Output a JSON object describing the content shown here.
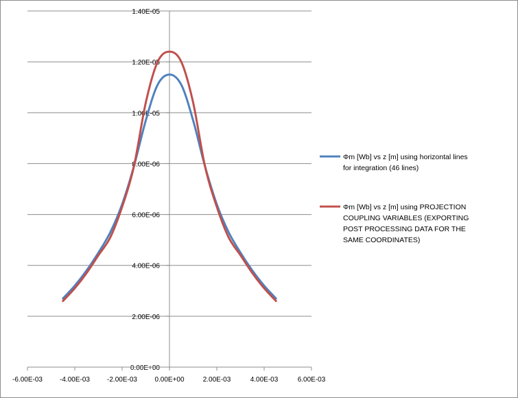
{
  "chart_data": {
    "type": "line",
    "title": "",
    "xlabel": "",
    "ylabel": "",
    "xlim": [
      -0.006,
      0.006
    ],
    "ylim": [
      0,
      1.4e-05
    ],
    "grid": "horizontal major gridlines",
    "legend_position": "right",
    "x_tick_labels": [
      "-6.00E-03",
      "-4.00E-03",
      "-2.00E-03",
      "0.00E+00",
      "2.00E-03",
      "4.00E-03",
      "6.00E-03"
    ],
    "y_tick_labels": [
      "0.00E+00",
      "2.00E-06",
      "4.00E-06",
      "6.00E-06",
      "8.00E-06",
      "1.00E-05",
      "1.20E-05",
      "1.40E-05"
    ],
    "series": [
      {
        "name": "Φm [Wb] vs z [m] using horizontal lines for integration (46 lines)",
        "legend_lines": [
          "Φm [Wb] vs z [m] using horizontal lines",
          "for integration (46 lines)"
        ],
        "color": "#4f81bd",
        "x": [
          -0.0045,
          -0.004,
          -0.0035,
          -0.003,
          -0.0025,
          -0.002,
          -0.0015,
          -0.001,
          -0.0005,
          0,
          0.0005,
          0.001,
          0.0015,
          0.002,
          0.0025,
          0.003,
          0.0035,
          0.004,
          0.0045
        ],
        "y": [
          2.7e-06,
          3.2e-06,
          3.8e-06,
          4.5e-06,
          5.3e-06,
          6.4e-06,
          7.9e-06,
          9.7e-06,
          1.11e-05,
          1.15e-05,
          1.11e-05,
          9.7e-06,
          7.9e-06,
          6.4e-06,
          5.3e-06,
          4.5e-06,
          3.8e-06,
          3.2e-06,
          2.7e-06
        ]
      },
      {
        "name": "Φm [Wb] vs z [m] using PROJECTION COUPLING VARIABLES (EXPORTING POST PROCESSING DATA FOR THE SAME COORDINATES)",
        "legend_lines": [
          "Φm [Wb] vs z [m] using PROJECTION",
          "COUPLING VARIABLES (EXPORTING",
          "POST PROCESSING  DATA FOR THE",
          "SAME COORDINATES)"
        ],
        "color": "#c0504d",
        "x": [
          -0.0045,
          -0.004,
          -0.0035,
          -0.003,
          -0.0025,
          -0.002,
          -0.0015,
          -0.001,
          -0.0005,
          0,
          0.0005,
          0.001,
          0.0015,
          0.002,
          0.0025,
          0.003,
          0.0035,
          0.004,
          0.0045
        ],
        "y": [
          2.6e-06,
          3.1e-06,
          3.7e-06,
          4.4e-06,
          5.1e-06,
          6.3e-06,
          7.9e-06,
          1.04e-05,
          1.2e-05,
          1.24e-05,
          1.2e-05,
          1.04e-05,
          7.9e-06,
          6.3e-06,
          5.1e-06,
          4.4e-06,
          3.7e-06,
          3.1e-06,
          2.6e-06
        ]
      }
    ]
  }
}
